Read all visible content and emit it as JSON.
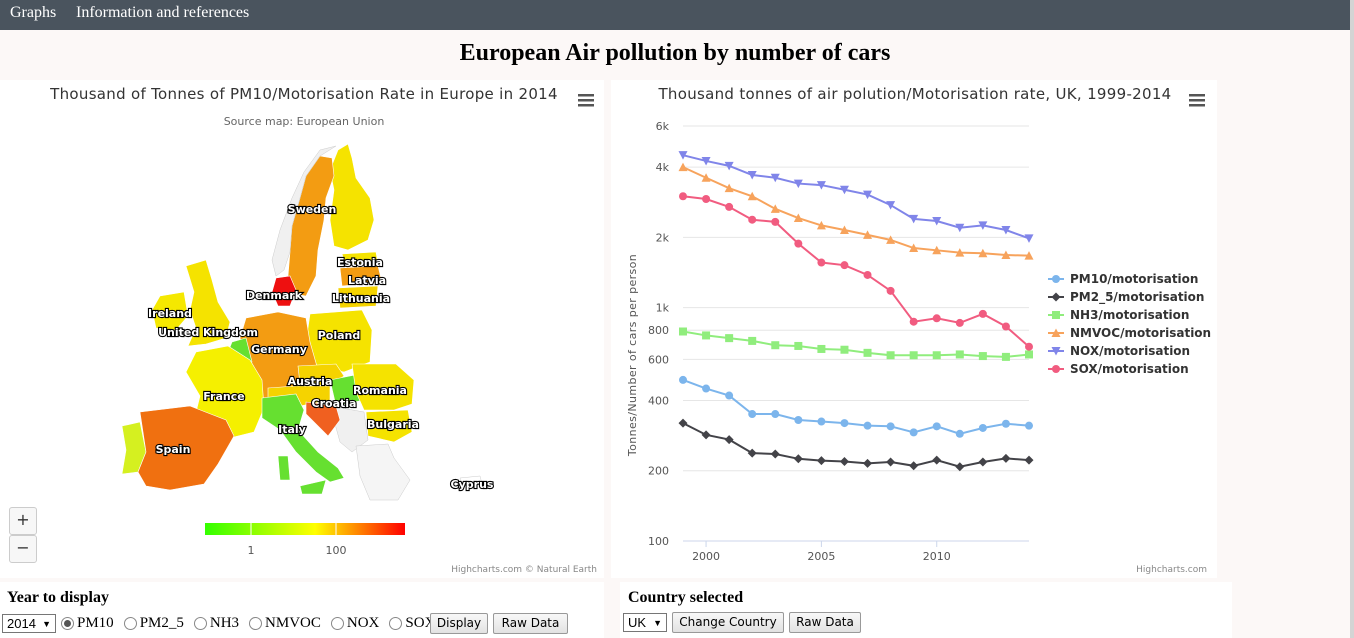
{
  "nav": {
    "items": [
      {
        "label": "Graphs"
      },
      {
        "label": "Information and references"
      }
    ]
  },
  "page": {
    "title": "European Air pollution by number of cars"
  },
  "map_chart": {
    "title": "Thousand of Tonnes of PM10/Motorisation Rate in Europe in 2014",
    "subtitle": "Source map: European Union",
    "credits": "Highcharts.com © Natural Earth",
    "color_axis": {
      "labels": [
        "1",
        "100"
      ],
      "colors": [
        "#33ff00",
        "#ffff00",
        "#ff0000"
      ]
    },
    "zoom": {
      "in": "+",
      "out": "−"
    },
    "countries": [
      {
        "name": "Sweden",
        "color": "#f39c12"
      },
      {
        "name": "Estonia",
        "color": "#f5e300"
      },
      {
        "name": "Latvia",
        "color": "#f39c12"
      },
      {
        "name": "Lithuania",
        "color": "#f5d300"
      },
      {
        "name": "Denmark",
        "color": "#ee1010"
      },
      {
        "name": "Ireland",
        "color": "#f5e800"
      },
      {
        "name": "United Kingdom",
        "color": "#f5e300"
      },
      {
        "name": "Poland",
        "color": "#f5e300"
      },
      {
        "name": "Germany",
        "color": "#f39c12"
      },
      {
        "name": "Austria",
        "color": "#f5d300"
      },
      {
        "name": "Romania",
        "color": "#f5e300"
      },
      {
        "name": "France",
        "color": "#f5f000"
      },
      {
        "name": "Croatia",
        "color": "#f06020"
      },
      {
        "name": "Italy",
        "color": "#66e030"
      },
      {
        "name": "Bulgaria",
        "color": "#f5e300"
      },
      {
        "name": "Spain",
        "color": "#f07010"
      },
      {
        "name": "Cyprus",
        "color": "#ffffff"
      }
    ]
  },
  "chart_data": {
    "type": "line",
    "title": "Thousand tonnes of air polution/Motorisation rate, UK, 1999-2014",
    "ylabel": "Tonnes/Number of cars per person",
    "xlabel": "",
    "yscale": "log",
    "ylim": [
      100,
      6000
    ],
    "yticks": [
      "100",
      "200",
      "400",
      "600",
      "800",
      "1k",
      "2k",
      "4k",
      "6k"
    ],
    "xticks": [
      "2000",
      "2005",
      "2010"
    ],
    "legend": "right",
    "credits": "Highcharts.com",
    "x": [
      1999,
      2000,
      2001,
      2002,
      2003,
      2004,
      2005,
      2006,
      2007,
      2008,
      2009,
      2010,
      2011,
      2012,
      2013,
      2014
    ],
    "series": [
      {
        "name": "PM10/motorisation",
        "color": "#7cb5ec",
        "marker": "circle",
        "values": [
          490,
          450,
          420,
          350,
          350,
          330,
          325,
          320,
          312,
          310,
          292,
          310,
          288,
          305,
          318,
          312
        ]
      },
      {
        "name": "PM2_5/motorisation",
        "color": "#434348",
        "marker": "diamond",
        "values": [
          320,
          285,
          272,
          238,
          236,
          225,
          221,
          219,
          215,
          218,
          210,
          222,
          208,
          218,
          226,
          222
        ]
      },
      {
        "name": "NH3/motorisation",
        "color": "#90ed7d",
        "marker": "square",
        "values": [
          790,
          760,
          740,
          720,
          690,
          685,
          665,
          660,
          640,
          625,
          625,
          625,
          630,
          620,
          615,
          630
        ]
      },
      {
        "name": "NMVOC/motorisation",
        "color": "#f7a35c",
        "marker": "triangle",
        "values": [
          4000,
          3600,
          3250,
          3000,
          2650,
          2420,
          2250,
          2150,
          2050,
          1950,
          1800,
          1760,
          1720,
          1710,
          1680,
          1670
        ]
      },
      {
        "name": "NOX/motorisation",
        "color": "#8085e9",
        "marker": "triangle-down",
        "values": [
          4500,
          4250,
          4050,
          3700,
          3600,
          3400,
          3350,
          3200,
          3050,
          2750,
          2400,
          2350,
          2200,
          2250,
          2150,
          1980
        ]
      },
      {
        "name": "SOX/motorisation",
        "color": "#f15c80",
        "marker": "circle",
        "values": [
          3000,
          2920,
          2700,
          2380,
          2330,
          1880,
          1560,
          1520,
          1380,
          1180,
          870,
          900,
          860,
          940,
          830,
          680
        ]
      }
    ]
  },
  "controls_left": {
    "title": "Year to display",
    "year": "2014",
    "options": [
      {
        "label": "PM10",
        "checked": true
      },
      {
        "label": "PM2_5"
      },
      {
        "label": "NH3"
      },
      {
        "label": "NMVOC"
      },
      {
        "label": "NOX"
      },
      {
        "label": "SOX"
      }
    ],
    "display_label": "Display",
    "raw_label": "Raw Data"
  },
  "controls_right": {
    "title": "Country selected",
    "country": "UK",
    "change_label": "Change Country",
    "raw_label": "Raw Data"
  }
}
